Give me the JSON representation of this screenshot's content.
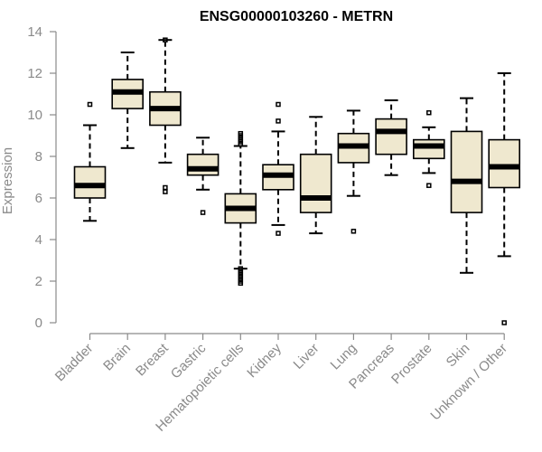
{
  "chart_data": {
    "type": "boxplot",
    "title": "ENSG00000103260 - METRN",
    "ylabel": "Expression",
    "xlabel": "",
    "ylim": [
      0,
      14
    ],
    "yticks": [
      0,
      2,
      4,
      6,
      8,
      10,
      12,
      14
    ],
    "categories": [
      "Bladder",
      "Brain",
      "Breast",
      "Gastric",
      "Hematopoietic cells",
      "Kidney",
      "Liver",
      "Lung",
      "Pancreas",
      "Prostate",
      "Skin",
      "Unknown / Other"
    ],
    "boxes": [
      {
        "category": "Bladder",
        "whisker_low": 4.9,
        "q1": 6.0,
        "median": 6.6,
        "q3": 7.5,
        "whisker_high": 9.5,
        "outliers": [
          10.5
        ]
      },
      {
        "category": "Brain",
        "whisker_low": 8.4,
        "q1": 10.3,
        "median": 11.1,
        "q3": 11.7,
        "whisker_high": 13.0,
        "outliers": []
      },
      {
        "category": "Breast",
        "whisker_low": 7.7,
        "q1": 9.5,
        "median": 10.3,
        "q3": 11.1,
        "whisker_high": 13.6,
        "outliers": [
          6.3,
          6.5,
          13.6
        ]
      },
      {
        "category": "Gastric",
        "whisker_low": 6.4,
        "q1": 7.1,
        "median": 7.4,
        "q3": 8.1,
        "whisker_high": 8.9,
        "outliers": [
          5.3
        ]
      },
      {
        "category": "Hematopoietic cells",
        "whisker_low": 2.6,
        "q1": 4.8,
        "median": 5.5,
        "q3": 6.2,
        "whisker_high": 8.5,
        "outliers": [
          1.9,
          2.0,
          2.1,
          2.2,
          2.3,
          2.4,
          2.5,
          2.6,
          8.6,
          8.7,
          8.8,
          8.9,
          9.0,
          9.1
        ]
      },
      {
        "category": "Kidney",
        "whisker_low": 4.7,
        "q1": 6.4,
        "median": 7.1,
        "q3": 7.6,
        "whisker_high": 9.2,
        "outliers": [
          4.3,
          9.7,
          10.5
        ]
      },
      {
        "category": "Liver",
        "whisker_low": 4.3,
        "q1": 5.3,
        "median": 6.0,
        "q3": 8.1,
        "whisker_high": 9.9,
        "outliers": []
      },
      {
        "category": "Lung",
        "whisker_low": 6.1,
        "q1": 7.7,
        "median": 8.5,
        "q3": 9.1,
        "whisker_high": 10.2,
        "outliers": [
          4.4
        ]
      },
      {
        "category": "Pancreas",
        "whisker_low": 7.1,
        "q1": 8.1,
        "median": 9.2,
        "q3": 9.8,
        "whisker_high": 10.7,
        "outliers": []
      },
      {
        "category": "Prostate",
        "whisker_low": 7.2,
        "q1": 7.9,
        "median": 8.5,
        "q3": 8.8,
        "whisker_high": 9.4,
        "outliers": [
          6.6,
          10.1
        ]
      },
      {
        "category": "Skin",
        "whisker_low": 2.4,
        "q1": 5.3,
        "median": 6.8,
        "q3": 9.2,
        "whisker_high": 10.8,
        "outliers": []
      },
      {
        "category": "Unknown / Other",
        "whisker_low": 3.2,
        "q1": 6.5,
        "median": 7.5,
        "q3": 8.8,
        "whisker_high": 12.0,
        "outliers": [
          0.0
        ]
      }
    ],
    "box_fill": "#efe8cf",
    "axis_color": "#8a8a8a",
    "grid": false,
    "legend": "none"
  }
}
